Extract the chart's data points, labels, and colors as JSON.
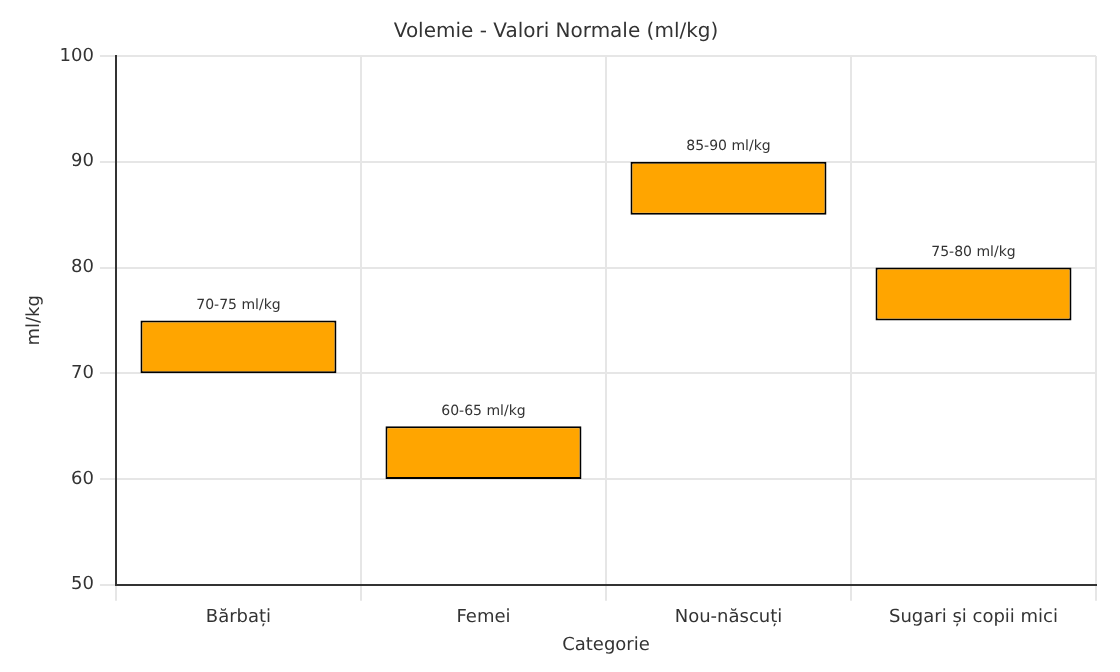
{
  "chart_data": {
    "type": "bar",
    "title": "Volemie - Valori Normale (ml/kg)",
    "xlabel": "Categorie",
    "ylabel": "ml/kg",
    "categories": [
      "Bărbați",
      "Femei",
      "Nou-născuți",
      "Sugari și copii mici"
    ],
    "base": [
      70,
      60,
      85,
      75
    ],
    "values": [
      5,
      5,
      5,
      5
    ],
    "value_labels": [
      "70-75 ml/kg",
      "60-65 ml/kg",
      "85-90 ml/kg",
      "75-80 ml/kg"
    ],
    "color": "#ffa500",
    "ylim": [
      50,
      100
    ],
    "yticks": [
      50,
      60,
      70,
      80,
      90,
      100
    ],
    "grid": true
  }
}
